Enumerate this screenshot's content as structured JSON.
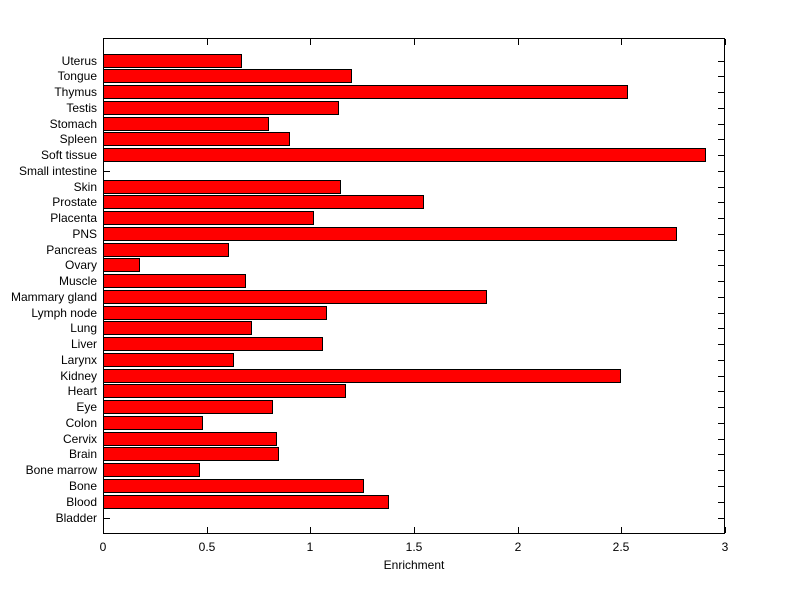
{
  "figure": {
    "background_color": "#ffffff",
    "axis_color": "#000000"
  },
  "chart_data": {
    "type": "bar",
    "orientation": "horizontal",
    "title": "",
    "xlabel": "Enrichment",
    "ylabel": "",
    "xlim": [
      0,
      3
    ],
    "grid": false,
    "bar_color": "#ff0000",
    "bar_edge_color": "#000000",
    "xticks": [
      0,
      0.5,
      1,
      1.5,
      2,
      2.5,
      3
    ],
    "xtick_labels": [
      "0",
      "0.5",
      "1",
      "1.5",
      "2",
      "2.5",
      "3"
    ],
    "categories": [
      "Uterus",
      "Tongue",
      "Thymus",
      "Testis",
      "Stomach",
      "Spleen",
      "Soft tissue",
      "Small intestine",
      "Skin",
      "Prostate",
      "Placenta",
      "PNS",
      "Pancreas",
      "Ovary",
      "Muscle",
      "Mammary gland",
      "Lymph node",
      "Lung",
      "Liver",
      "Larynx",
      "Kidney",
      "Heart",
      "Eye",
      "Colon",
      "Cervix",
      "Brain",
      "Bone marrow",
      "Bone",
      "Blood",
      "Bladder"
    ],
    "values": [
      0.67,
      1.2,
      2.53,
      1.14,
      0.8,
      0.9,
      2.91,
      0,
      1.15,
      1.55,
      1.02,
      2.77,
      0.61,
      0.18,
      0.69,
      1.85,
      1.08,
      0.72,
      1.06,
      0.63,
      2.5,
      1.17,
      0.82,
      0.48,
      0.84,
      0.85,
      0.47,
      1.26,
      1.38,
      0
    ]
  }
}
